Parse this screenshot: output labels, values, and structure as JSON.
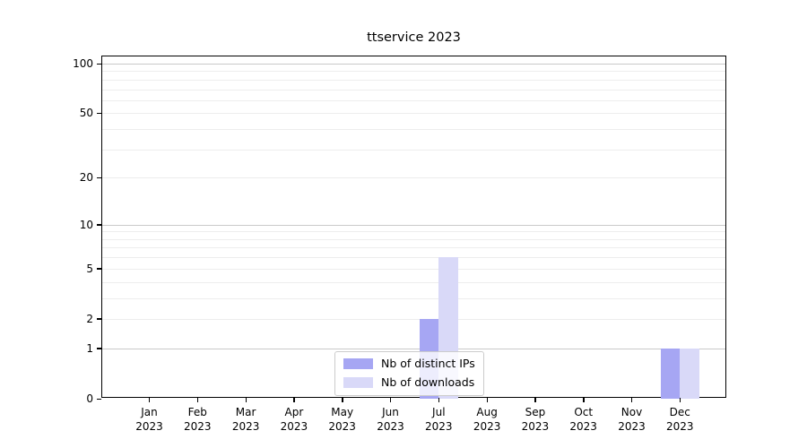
{
  "chart_data": {
    "type": "bar",
    "title": "ttservice 2023",
    "categories": [
      "Jan 2023",
      "Feb 2023",
      "Mar 2023",
      "Apr 2023",
      "May 2023",
      "Jun 2023",
      "Jul 2023",
      "Aug 2023",
      "Sep 2023",
      "Oct 2023",
      "Nov 2023",
      "Dec 2023"
    ],
    "months": [
      "Jan",
      "Feb",
      "Mar",
      "Apr",
      "May",
      "Jun",
      "Jul",
      "Aug",
      "Sep",
      "Oct",
      "Nov",
      "Dec"
    ],
    "year": "2023",
    "series": [
      {
        "name": "Nb of distinct IPs",
        "color": "#a6a6f3",
        "values": [
          0,
          0,
          0,
          0,
          0,
          0,
          2,
          0,
          0,
          0,
          0,
          1
        ]
      },
      {
        "name": "Nb of downloads",
        "color": "#d9d9f8",
        "values": [
          0,
          0,
          0,
          0,
          0,
          0,
          6,
          0,
          0,
          0,
          0,
          1
        ]
      }
    ],
    "xlabel": "",
    "ylabel": "",
    "y_scale": "log1p",
    "ylim": [
      0,
      110
    ],
    "y_ticks": [
      0,
      1,
      2,
      5,
      10,
      20,
      50,
      100
    ],
    "y_major_gridlines": [
      1,
      10,
      100
    ],
    "y_minor_gridlines": [
      2,
      3,
      4,
      5,
      6,
      7,
      8,
      9,
      20,
      30,
      40,
      50,
      60,
      70,
      80,
      90
    ],
    "grid": true,
    "legend_position": "lower-center"
  },
  "colors": {
    "major_grid": "#c9c9c9",
    "minor_grid": "#ededed",
    "spine": "#000000",
    "text": "#000000",
    "background": "#ffffff"
  }
}
